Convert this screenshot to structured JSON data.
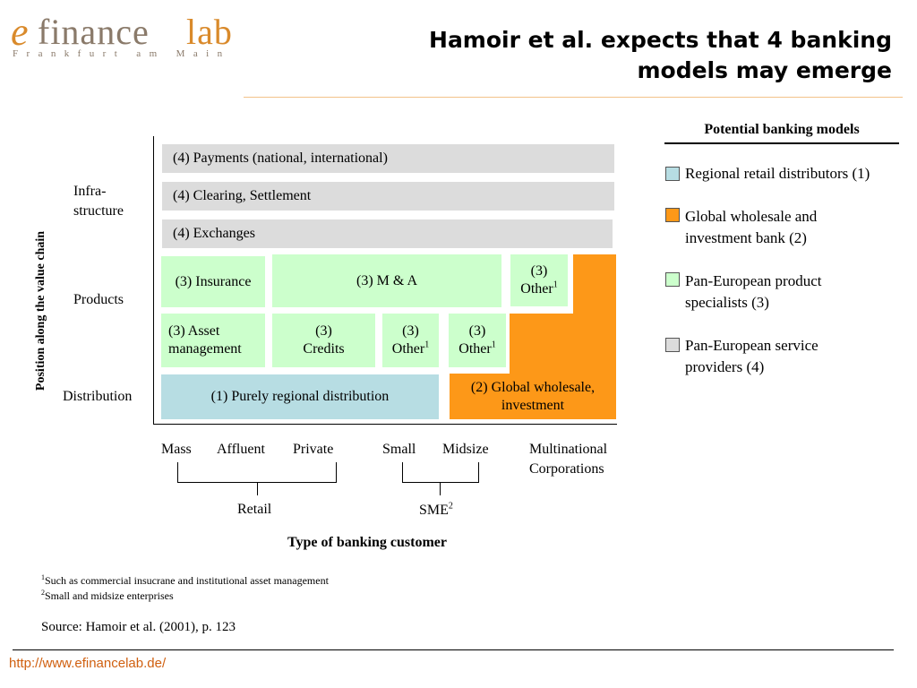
{
  "logo": {
    "e": "e",
    "finance": "finance",
    "lab": "lab",
    "sub": "Frankfurt am Main"
  },
  "title": "Hamoir et al. expects that 4 banking models may emerge",
  "axis": {
    "y_label": "Position along the value chain",
    "x_label": "Type of banking customer",
    "rows": [
      "Infra-\nstructure",
      "Products",
      "Distribution"
    ]
  },
  "boxes": {
    "payments": "(4) Payments (national, international)",
    "clearing": "(4) Clearing, Settlement",
    "exchanges": "(4) Exchanges",
    "insurance": "(3) Insurance",
    "ma": "(3) M & A",
    "other_top": {
      "line1": "(3)",
      "line2": "Other",
      "sup": "1"
    },
    "asset_mgmt": "(3) Asset\nmanagement",
    "credits": "(3)\nCredits",
    "other_mid1": {
      "line1": "(3)",
      "line2": "Other",
      "sup": "1"
    },
    "other_mid2": {
      "line1": "(3)",
      "line2": "Other",
      "sup": "1"
    },
    "regional": "(1) Purely regional distribution",
    "global": "(2) Global wholesale,\ninvestment"
  },
  "customers": {
    "mass": "Mass",
    "affluent": "Affluent",
    "private": "Private",
    "small": "Small",
    "midsize": "Midsize",
    "multinational": "Multinational\nCorporations",
    "retail": "Retail",
    "sme": {
      "text": "SME",
      "sup": "2"
    }
  },
  "legend": {
    "title": "Potential banking models",
    "items": [
      {
        "label": "Regional retail distributors (1)",
        "color": "#b7dde3"
      },
      {
        "label": "Global wholesale and investment bank (2)",
        "color": "#fd9818"
      },
      {
        "label": "Pan-European product specialists (3)",
        "color": "#ccffcc"
      },
      {
        "label": "Pan-European service providers (4)",
        "color": "#dcdcdc"
      }
    ]
  },
  "footnotes": [
    {
      "sup": "1",
      "text": "Such as commercial insucrane and institutional asset management"
    },
    {
      "sup": "2",
      "text": "Small and midsize enterprises"
    }
  ],
  "source": "Source: Hamoir et al. (2001), p. 123",
  "url": "http://www.efinancelab.de/"
}
